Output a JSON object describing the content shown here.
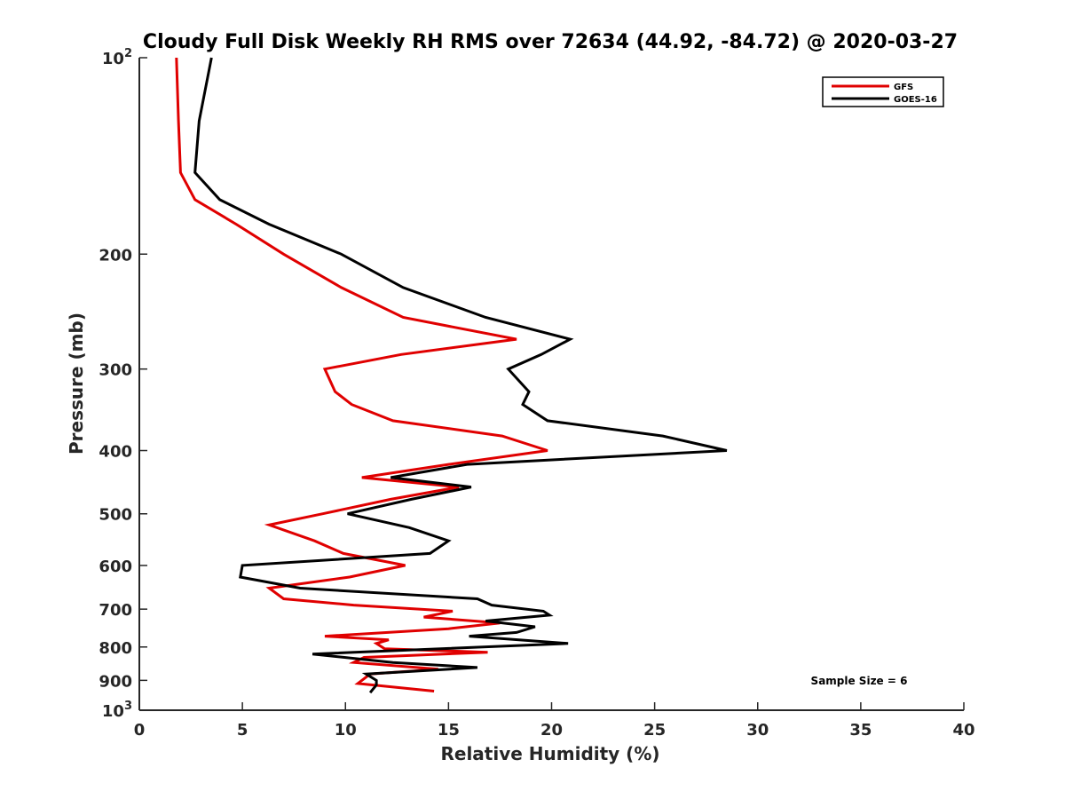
{
  "chart_data": {
    "type": "line",
    "title": "Cloudy Full Disk Weekly RH RMS over 72634 (44.92, -84.72) @ 2020-03-27",
    "xlabel": "Relative Humidity (%)",
    "ylabel": "Pressure (mb)",
    "xlim": [
      0,
      40
    ],
    "ylim": [
      100,
      1000
    ],
    "y_scale": "log",
    "y_reversed": true,
    "x_ticks": [
      0,
      5,
      10,
      15,
      20,
      25,
      30,
      35,
      40
    ],
    "x_tick_labels": [
      "0",
      "5",
      "10",
      "15",
      "20",
      "25",
      "30",
      "35",
      "40"
    ],
    "y_ticks": [
      100,
      200,
      300,
      400,
      500,
      600,
      700,
      800,
      900,
      1000
    ],
    "y_tick_labels": [
      {
        "base": "10",
        "exp": "2"
      },
      {
        "base": "200",
        "exp": ""
      },
      {
        "base": "300",
        "exp": ""
      },
      {
        "base": "400",
        "exp": ""
      },
      {
        "base": "500",
        "exp": ""
      },
      {
        "base": "600",
        "exp": ""
      },
      {
        "base": "700",
        "exp": ""
      },
      {
        "base": "800",
        "exp": ""
      },
      {
        "base": "900",
        "exp": ""
      },
      {
        "base": "10",
        "exp": "3"
      }
    ],
    "grid": false,
    "legend_position": "top-right",
    "annotation": "Sample Size = 6",
    "series": [
      {
        "name": "GFS",
        "color": "#e00000",
        "points": [
          [
            1.8,
            100
          ],
          [
            1.9,
            125
          ],
          [
            2.0,
            150
          ],
          [
            2.7,
            165
          ],
          [
            4.7,
            180
          ],
          [
            7.0,
            200
          ],
          [
            9.8,
            225
          ],
          [
            12.8,
            250
          ],
          [
            18.3,
            270
          ],
          [
            12.7,
            285
          ],
          [
            9.0,
            300
          ],
          [
            9.5,
            325
          ],
          [
            10.3,
            340
          ],
          [
            12.3,
            360
          ],
          [
            17.6,
            380
          ],
          [
            19.8,
            400
          ],
          [
            15.0,
            420
          ],
          [
            10.8,
            440
          ],
          [
            15.5,
            455
          ],
          [
            12.2,
            475
          ],
          [
            8.9,
            500
          ],
          [
            6.3,
            520
          ],
          [
            8.5,
            550
          ],
          [
            9.9,
            575
          ],
          [
            12.9,
            600
          ],
          [
            10.2,
            625
          ],
          [
            6.3,
            650
          ],
          [
            7.0,
            675
          ],
          [
            10.4,
            690
          ],
          [
            15.2,
            705
          ],
          [
            13.8,
            720
          ],
          [
            17.5,
            735
          ],
          [
            15.0,
            750
          ],
          [
            9.0,
            770
          ],
          [
            12.1,
            780
          ],
          [
            11.5,
            790
          ],
          [
            11.9,
            805
          ],
          [
            16.9,
            815
          ],
          [
            10.9,
            830
          ],
          [
            10.4,
            845
          ],
          [
            14.5,
            865
          ],
          [
            11.2,
            880
          ],
          [
            10.6,
            910
          ],
          [
            14.3,
            935
          ]
        ]
      },
      {
        "name": "GOES-16",
        "color": "#000000",
        "points": [
          [
            3.5,
            100
          ],
          [
            2.9,
            125
          ],
          [
            2.7,
            150
          ],
          [
            3.9,
            165
          ],
          [
            6.3,
            180
          ],
          [
            9.8,
            200
          ],
          [
            12.8,
            225
          ],
          [
            16.8,
            250
          ],
          [
            20.9,
            270
          ],
          [
            19.5,
            285
          ],
          [
            17.9,
            300
          ],
          [
            18.9,
            325
          ],
          [
            18.6,
            340
          ],
          [
            19.8,
            360
          ],
          [
            25.4,
            380
          ],
          [
            28.5,
            400
          ],
          [
            15.9,
            420
          ],
          [
            12.2,
            440
          ],
          [
            16.1,
            455
          ],
          [
            13.2,
            475
          ],
          [
            10.1,
            500
          ],
          [
            13.1,
            525
          ],
          [
            15.0,
            550
          ],
          [
            14.1,
            575
          ],
          [
            5.0,
            600
          ],
          [
            4.9,
            625
          ],
          [
            7.8,
            650
          ],
          [
            16.4,
            675
          ],
          [
            17.1,
            690
          ],
          [
            19.6,
            705
          ],
          [
            19.9,
            715
          ],
          [
            16.8,
            730
          ],
          [
            19.2,
            745
          ],
          [
            18.3,
            760
          ],
          [
            16.0,
            770
          ],
          [
            20.8,
            790
          ],
          [
            8.4,
            820
          ],
          [
            12.3,
            845
          ],
          [
            16.4,
            860
          ],
          [
            11.0,
            880
          ],
          [
            11.5,
            900
          ],
          [
            11.5,
            915
          ],
          [
            11.2,
            940
          ]
        ]
      }
    ]
  }
}
